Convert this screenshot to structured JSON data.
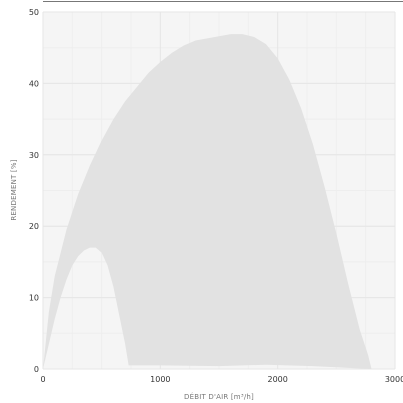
{
  "chart_data": {
    "type": "area",
    "title": "",
    "xlabel": "DÉBIT D'AIR [m³/h]",
    "ylabel": "RENDEMENT [%]",
    "xlim": [
      0,
      3000
    ],
    "ylim": [
      0,
      50
    ],
    "x_ticks": [
      "0",
      "1000",
      "2000",
      "3000"
    ],
    "y_ticks": [
      "0",
      "10",
      "20",
      "30",
      "40",
      "50"
    ],
    "grid": true,
    "legend": "none",
    "colors": {
      "area_fill": "#e2e2e2",
      "plot_background": "#f5f5f5",
      "grid_major": "#e6e6e6",
      "grid_minor": "#eeeeee",
      "top_border": "#777777",
      "tick_text": "#333333",
      "axis_title_text": "#777777"
    },
    "region": {
      "upper_boundary": [
        {
          "x": 0,
          "y": 0
        },
        {
          "x": 50,
          "y": 8
        },
        {
          "x": 100,
          "y": 13
        },
        {
          "x": 200,
          "y": 19.5
        },
        {
          "x": 300,
          "y": 24.5
        },
        {
          "x": 400,
          "y": 28.5
        },
        {
          "x": 500,
          "y": 32
        },
        {
          "x": 600,
          "y": 35
        },
        {
          "x": 700,
          "y": 37.5
        },
        {
          "x": 800,
          "y": 39.5
        },
        {
          "x": 900,
          "y": 41.5
        },
        {
          "x": 1000,
          "y": 43
        },
        {
          "x": 1100,
          "y": 44.3
        },
        {
          "x": 1200,
          "y": 45.3
        },
        {
          "x": 1300,
          "y": 46
        },
        {
          "x": 1400,
          "y": 46.3
        },
        {
          "x": 1500,
          "y": 46.6
        },
        {
          "x": 1600,
          "y": 46.9
        },
        {
          "x": 1700,
          "y": 46.9
        },
        {
          "x": 1800,
          "y": 46.5
        },
        {
          "x": 1900,
          "y": 45.5
        },
        {
          "x": 2000,
          "y": 43.5
        },
        {
          "x": 2100,
          "y": 40.5
        },
        {
          "x": 2200,
          "y": 36.5
        },
        {
          "x": 2300,
          "y": 31.5
        },
        {
          "x": 2400,
          "y": 25.5
        },
        {
          "x": 2500,
          "y": 19
        },
        {
          "x": 2600,
          "y": 12
        },
        {
          "x": 2700,
          "y": 5.5
        },
        {
          "x": 2770,
          "y": 2
        },
        {
          "x": 2800,
          "y": 0
        }
      ],
      "lower_boundary": [
        {
          "x": 0,
          "y": 0
        },
        {
          "x": 50,
          "y": 3.5
        },
        {
          "x": 100,
          "y": 7
        },
        {
          "x": 150,
          "y": 10
        },
        {
          "x": 200,
          "y": 12.5
        },
        {
          "x": 250,
          "y": 14.5
        },
        {
          "x": 300,
          "y": 15.8
        },
        {
          "x": 350,
          "y": 16.6
        },
        {
          "x": 400,
          "y": 17
        },
        {
          "x": 450,
          "y": 17
        },
        {
          "x": 500,
          "y": 16.3
        },
        {
          "x": 550,
          "y": 14.5
        },
        {
          "x": 600,
          "y": 11.5
        },
        {
          "x": 650,
          "y": 7.5
        },
        {
          "x": 700,
          "y": 3.5
        },
        {
          "x": 730,
          "y": 0.5
        },
        {
          "x": 1000,
          "y": 0.5
        },
        {
          "x": 1500,
          "y": 0.4
        },
        {
          "x": 1900,
          "y": 0.6
        },
        {
          "x": 2300,
          "y": 0.4
        },
        {
          "x": 2800,
          "y": 0
        }
      ]
    }
  }
}
